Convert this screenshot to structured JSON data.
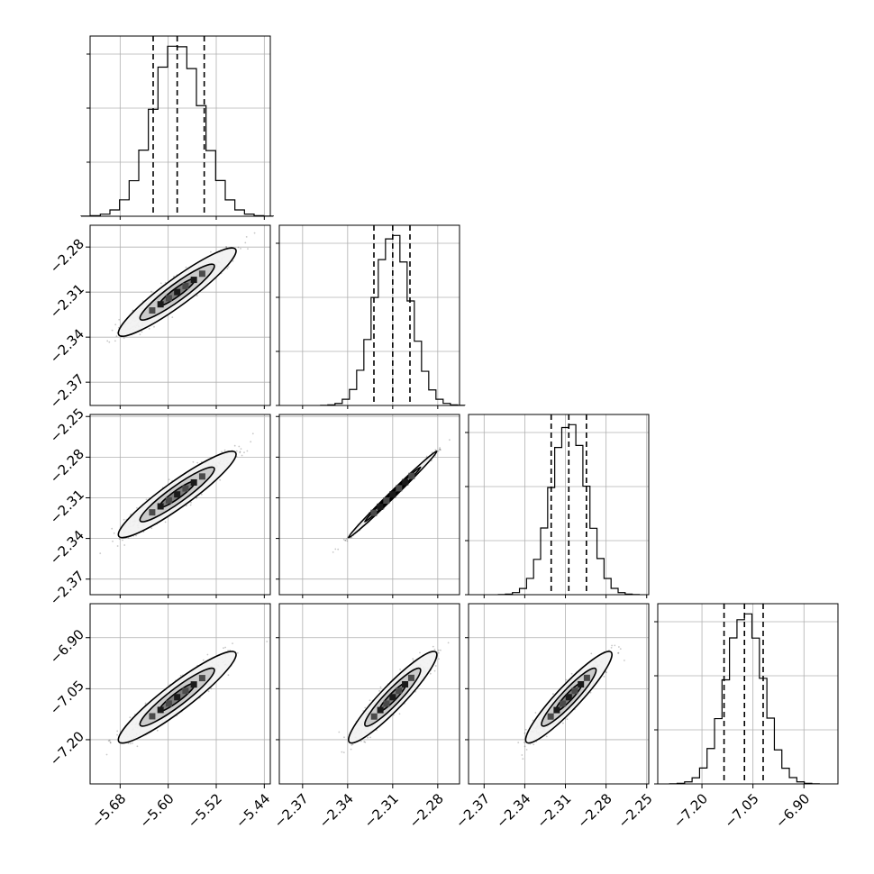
{
  "chart_data": {
    "type": "corner",
    "description_free": true,
    "n_params": 4,
    "axes": [
      {
        "range": [
          -5.73,
          -5.43
        ],
        "ticks": [
          -5.68,
          -5.6,
          -5.52,
          -5.44
        ],
        "tick_labels": [
          "−5.68",
          "−5.60",
          "−5.52",
          "−5.44"
        ],
        "quantiles": [
          -5.625,
          -5.585,
          -5.54
        ],
        "median": -5.585,
        "sigma": 0.04
      },
      {
        "range": [
          -2.3855,
          -2.2655
        ],
        "ticks": [
          -2.37,
          -2.34,
          -2.31,
          -2.28
        ],
        "tick_labels": [
          "−2.37",
          "−2.34",
          "−2.31",
          "−2.28"
        ],
        "quantiles": [
          -2.3225,
          -2.31,
          -2.2985
        ],
        "median": -2.31,
        "sigma": 0.012
      },
      {
        "range": [
          -2.3815,
          -2.2485
        ],
        "ticks": [
          -2.37,
          -2.34,
          -2.31,
          -2.28,
          -2.25
        ],
        "tick_labels": [
          "−2.37",
          "−2.34",
          "−2.31",
          "−2.28",
          "−2.25"
        ],
        "quantiles": [
          -2.3205,
          -2.3075,
          -2.2945
        ],
        "median": -2.3075,
        "sigma": 0.013
      },
      {
        "range": [
          -7.33,
          -6.8
        ],
        "ticks": [
          -7.2,
          -7.05,
          -6.9
        ],
        "tick_labels": [
          "−7.20",
          "−7.05",
          "−6.90"
        ],
        "quantiles": [
          -7.135,
          -7.075,
          -7.02
        ],
        "median": -7.075,
        "sigma": 0.055
      }
    ],
    "correlation": 0.93,
    "histogram_bins": 20,
    "histogram_y_ticks": 3,
    "grid": true,
    "quantile_line_style": "dashed"
  }
}
